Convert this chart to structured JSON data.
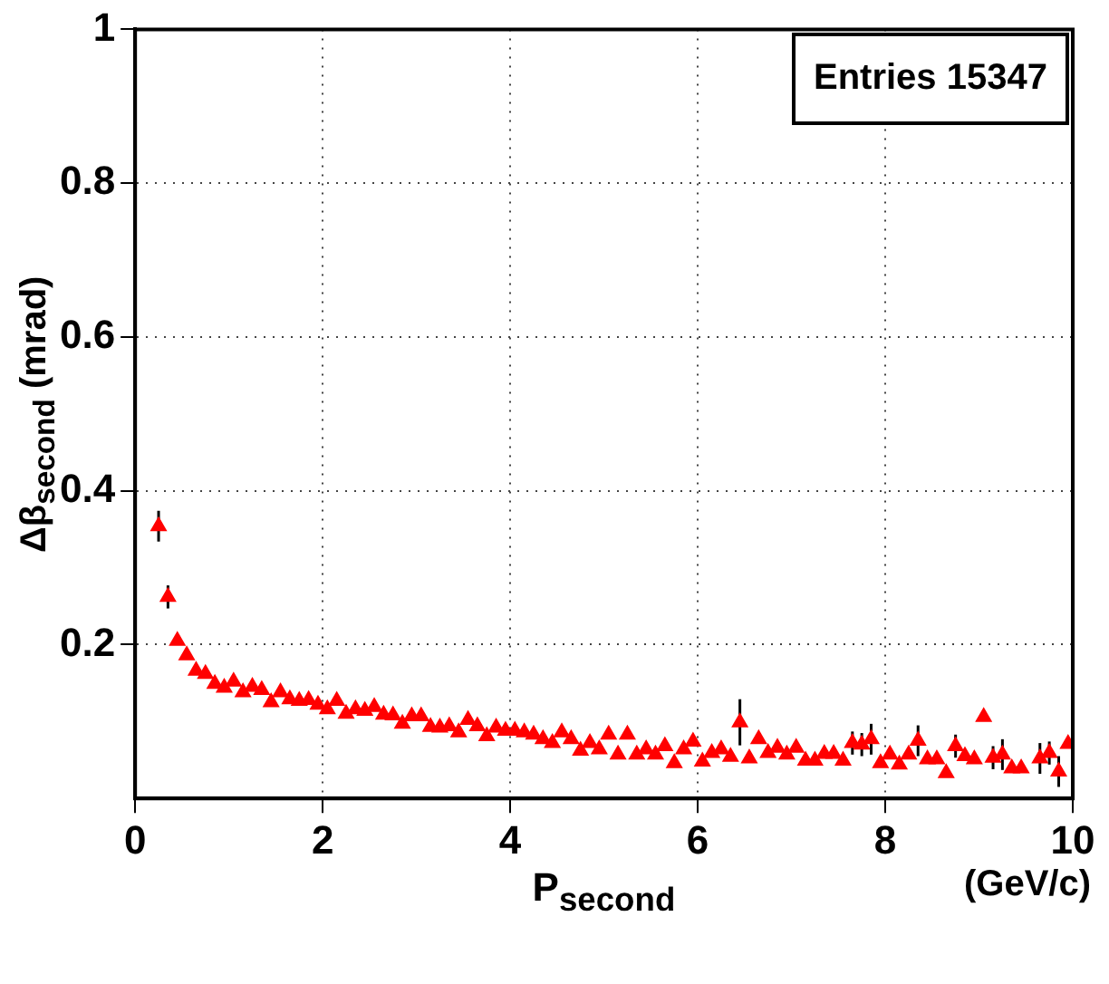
{
  "chart_data": {
    "type": "scatter",
    "xlabel": "P$_{second}$",
    "ylabel": "Δβ$_{second}$ (mrad)",
    "annotations": [
      "Entries   15347",
      "(GeV/c)"
    ],
    "xlim": [
      0,
      10
    ],
    "xticks": [
      0,
      2,
      4,
      6,
      8,
      10
    ],
    "ylim": [
      0,
      1
    ],
    "yticks": [
      0.2,
      0.4,
      0.6,
      0.8,
      1
    ],
    "grid": true,
    "legend": false,
    "marker": "triangle",
    "series": [
      {
        "color": "#ff0000",
        "x": [
          0.25,
          0.35,
          0.45,
          0.55,
          0.65,
          0.75,
          0.85,
          0.95,
          1.05,
          1.15,
          1.25,
          1.35,
          1.45,
          1.55,
          1.65,
          1.75,
          1.85,
          1.95,
          2.05,
          2.15,
          2.25,
          2.35,
          2.45,
          2.55,
          2.65,
          2.75,
          2.85,
          2.95,
          3.05,
          3.15,
          3.25,
          3.35,
          3.45,
          3.55,
          3.65,
          3.75,
          3.85,
          3.95,
          4.05,
          4.15,
          4.25,
          4.35,
          4.45,
          4.55,
          4.65,
          4.75,
          4.85,
          4.95,
          5.05,
          5.15,
          5.25,
          5.35,
          5.45,
          5.55,
          5.65,
          5.75,
          5.85,
          5.95,
          6.05,
          6.15,
          6.25,
          6.35,
          6.45,
          6.55,
          6.65,
          6.75,
          6.85,
          6.95,
          7.05,
          7.15,
          7.25,
          7.35,
          7.45,
          7.55,
          7.65,
          7.75,
          7.85,
          7.95,
          8.05,
          8.15,
          8.25,
          8.35,
          8.45,
          8.55,
          8.65,
          8.75,
          8.85,
          8.95,
          9.05,
          9.15,
          9.25,
          9.35,
          9.45,
          9.65,
          9.75,
          9.85,
          9.95
        ],
        "values": [
          0.354,
          0.262,
          0.205,
          0.186,
          0.166,
          0.162,
          0.149,
          0.144,
          0.152,
          0.138,
          0.145,
          0.141,
          0.125,
          0.138,
          0.129,
          0.127,
          0.128,
          0.122,
          0.116,
          0.127,
          0.11,
          0.116,
          0.114,
          0.119,
          0.109,
          0.108,
          0.097,
          0.107,
          0.107,
          0.093,
          0.092,
          0.094,
          0.086,
          0.102,
          0.094,
          0.081,
          0.092,
          0.088,
          0.088,
          0.086,
          0.083,
          0.077,
          0.072,
          0.086,
          0.077,
          0.062,
          0.072,
          0.064,
          0.083,
          0.057,
          0.083,
          0.057,
          0.064,
          0.057,
          0.068,
          0.046,
          0.064,
          0.074,
          0.048,
          0.059,
          0.064,
          0.054,
          0.099,
          0.052,
          0.077,
          0.059,
          0.066,
          0.057,
          0.066,
          0.049,
          0.049,
          0.058,
          0.058,
          0.049,
          0.072,
          0.07,
          0.077,
          0.046,
          0.057,
          0.044,
          0.057,
          0.075,
          0.051,
          0.051,
          0.033,
          0.068,
          0.055,
          0.051,
          0.106,
          0.053,
          0.057,
          0.039,
          0.039,
          0.052,
          0.059,
          0.035,
          0.071
        ],
        "errors": [
          0.02,
          0.015,
          null,
          null,
          null,
          null,
          null,
          null,
          null,
          null,
          null,
          null,
          null,
          null,
          null,
          null,
          null,
          null,
          null,
          null,
          null,
          null,
          null,
          null,
          null,
          null,
          null,
          null,
          null,
          null,
          null,
          null,
          null,
          null,
          null,
          null,
          null,
          null,
          null,
          null,
          null,
          null,
          null,
          null,
          null,
          null,
          null,
          null,
          null,
          null,
          null,
          null,
          null,
          null,
          null,
          null,
          null,
          null,
          null,
          null,
          null,
          null,
          0.03,
          null,
          null,
          null,
          null,
          null,
          null,
          null,
          null,
          null,
          null,
          null,
          0.015,
          0.015,
          0.02,
          null,
          null,
          null,
          null,
          0.02,
          null,
          null,
          null,
          0.015,
          null,
          null,
          null,
          0.015,
          0.02,
          null,
          null,
          0.02,
          0.015,
          0.02,
          null
        ]
      }
    ]
  }
}
